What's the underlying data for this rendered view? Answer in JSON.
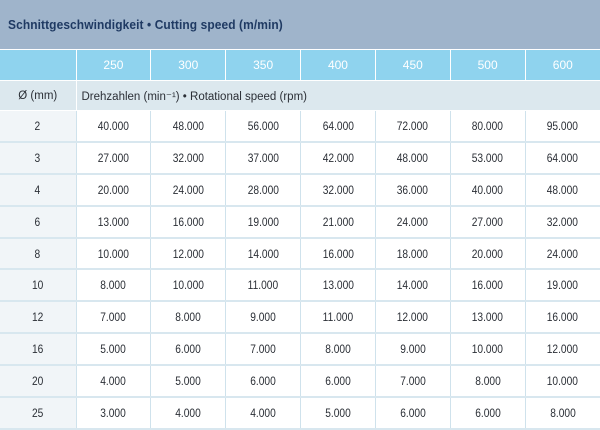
{
  "title": "Schnittgeschwindigkeit • Cutting speed (m/min)",
  "speeds": [
    "250",
    "300",
    "350",
    "400",
    "450",
    "500",
    "600"
  ],
  "unit_row": {
    "diameter_label": "Ø (mm)",
    "rotational_label": "Drehzahlen (min⁻¹) • Rotational speed (rpm)"
  },
  "rows": [
    {
      "d": "2",
      "v": [
        "40.000",
        "48.000",
        "56.000",
        "64.000",
        "72.000",
        "80.000",
        "95.000"
      ]
    },
    {
      "d": "3",
      "v": [
        "27.000",
        "32.000",
        "37.000",
        "42.000",
        "48.000",
        "53.000",
        "64.000"
      ]
    },
    {
      "d": "4",
      "v": [
        "20.000",
        "24.000",
        "28.000",
        "32.000",
        "36.000",
        "40.000",
        "48.000"
      ]
    },
    {
      "d": "6",
      "v": [
        "13.000",
        "16.000",
        "19.000",
        "21.000",
        "24.000",
        "27.000",
        "32.000"
      ]
    },
    {
      "d": "8",
      "v": [
        "10.000",
        "12.000",
        "14.000",
        "16.000",
        "18.000",
        "20.000",
        "24.000"
      ]
    },
    {
      "d": "10",
      "v": [
        "8.000",
        "10.000",
        "11.000",
        "13.000",
        "14.000",
        "16.000",
        "19.000"
      ]
    },
    {
      "d": "12",
      "v": [
        "7.000",
        "8.000",
        "9.000",
        "11.000",
        "12.000",
        "13.000",
        "16.000"
      ]
    },
    {
      "d": "16",
      "v": [
        "5.000",
        "6.000",
        "7.000",
        "8.000",
        "9.000",
        "10.000",
        "12.000"
      ]
    },
    {
      "d": "20",
      "v": [
        "4.000",
        "5.000",
        "6.000",
        "6.000",
        "7.000",
        "8.000",
        "10.000"
      ]
    },
    {
      "d": "25",
      "v": [
        "3.000",
        "4.000",
        "4.000",
        "5.000",
        "6.000",
        "6.000",
        "8.000"
      ]
    }
  ]
}
